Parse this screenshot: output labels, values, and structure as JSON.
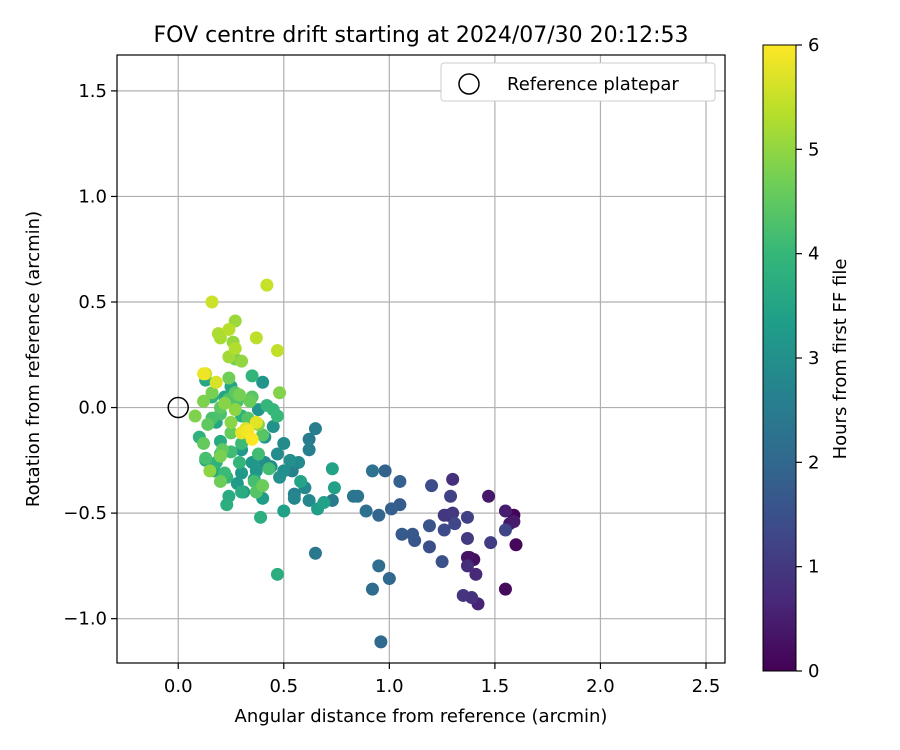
{
  "chart_data": {
    "type": "scatter",
    "title": "FOV centre drift starting at 2024/07/30 20:12:53",
    "xlabel": "Angular distance from reference (arcmin)",
    "ylabel": "Rotation from reference (arcmin)",
    "xlim": [
      -0.29,
      2.59
    ],
    "ylim": [
      -1.21,
      1.67
    ],
    "xticks": [
      0.0,
      0.5,
      1.0,
      1.5,
      2.0,
      2.5
    ],
    "xtick_labels": [
      "0.0",
      "0.5",
      "1.0",
      "1.5",
      "2.0",
      "2.5"
    ],
    "yticks": [
      -1.0,
      -0.5,
      0.0,
      0.5,
      1.0,
      1.5
    ],
    "ytick_labels": [
      "−1.0",
      "−0.5",
      "0.0",
      "0.5",
      "1.0",
      "1.5"
    ],
    "grid": true,
    "legend": {
      "position": "top-right",
      "entries": [
        "Reference platepar"
      ]
    },
    "reference_point": {
      "x": 0.0,
      "y": 0.0,
      "label": "Reference platepar"
    },
    "colorbar": {
      "label": "Hours from first FF file",
      "colormap": "viridis",
      "range": [
        0,
        6
      ],
      "ticks": [
        0,
        1,
        2,
        3,
        4,
        5,
        6
      ],
      "tick_labels": [
        "0",
        "1",
        "2",
        "3",
        "4",
        "5",
        "6"
      ],
      "colors": [
        "#440154",
        "#482878",
        "#3e4989",
        "#31688e",
        "#26828e",
        "#1f9e89",
        "#35b779",
        "#6ece58",
        "#b5de2b",
        "#fde725"
      ]
    },
    "points": [
      {
        "x": 1.59,
        "y": -0.51,
        "h": 0.05
      },
      {
        "x": 1.6,
        "y": -0.65,
        "h": 0.1
      },
      {
        "x": 1.55,
        "y": -0.86,
        "h": 0.15
      },
      {
        "x": 1.38,
        "y": -0.71,
        "h": 0.2
      },
      {
        "x": 1.4,
        "y": -0.72,
        "h": 0.25
      },
      {
        "x": 1.37,
        "y": -0.71,
        "h": 0.3
      },
      {
        "x": 1.57,
        "y": -0.55,
        "h": 0.35
      },
      {
        "x": 1.47,
        "y": -0.42,
        "h": 0.4
      },
      {
        "x": 1.59,
        "y": -0.54,
        "h": 0.45
      },
      {
        "x": 1.55,
        "y": -0.49,
        "h": 0.5
      },
      {
        "x": 1.28,
        "y": -0.51,
        "h": 0.55
      },
      {
        "x": 1.42,
        "y": -0.93,
        "h": 0.6
      },
      {
        "x": 1.41,
        "y": -0.79,
        "h": 0.7
      },
      {
        "x": 1.37,
        "y": -0.75,
        "h": 0.75
      },
      {
        "x": 1.3,
        "y": -0.34,
        "h": 0.8
      },
      {
        "x": 1.39,
        "y": -0.9,
        "h": 0.85
      },
      {
        "x": 1.35,
        "y": -0.89,
        "h": 0.9
      },
      {
        "x": 1.26,
        "y": -0.51,
        "h": 0.95
      },
      {
        "x": 1.3,
        "y": -0.5,
        "h": 1.0
      },
      {
        "x": 1.37,
        "y": -0.62,
        "h": 1.05
      },
      {
        "x": 1.48,
        "y": -0.64,
        "h": 1.1
      },
      {
        "x": 1.37,
        "y": -0.52,
        "h": 1.15
      },
      {
        "x": 1.29,
        "y": -0.42,
        "h": 1.2
      },
      {
        "x": 1.55,
        "y": -0.58,
        "h": 1.25
      },
      {
        "x": 1.31,
        "y": -0.55,
        "h": 1.3
      },
      {
        "x": 1.26,
        "y": -0.58,
        "h": 1.35
      },
      {
        "x": 1.2,
        "y": -0.37,
        "h": 1.4
      },
      {
        "x": 1.19,
        "y": -0.66,
        "h": 1.45
      },
      {
        "x": 1.25,
        "y": -0.73,
        "h": 1.5
      },
      {
        "x": 1.19,
        "y": -0.56,
        "h": 1.55
      },
      {
        "x": 1.12,
        "y": -0.63,
        "h": 1.6
      },
      {
        "x": 1.11,
        "y": -0.6,
        "h": 1.65
      },
      {
        "x": 1.06,
        "y": -0.6,
        "h": 1.7
      },
      {
        "x": 1.05,
        "y": -0.46,
        "h": 1.75
      },
      {
        "x": 1.01,
        "y": -0.48,
        "h": 1.8
      },
      {
        "x": 1.05,
        "y": -0.35,
        "h": 1.85
      },
      {
        "x": 0.98,
        "y": -0.3,
        "h": 1.9
      },
      {
        "x": 0.95,
        "y": -0.51,
        "h": 1.95
      },
      {
        "x": 1.0,
        "y": -0.81,
        "h": 2.0
      },
      {
        "x": 0.96,
        "y": -1.11,
        "h": 2.05
      },
      {
        "x": 0.92,
        "y": -0.86,
        "h": 2.1
      },
      {
        "x": 0.95,
        "y": -0.75,
        "h": 2.15
      },
      {
        "x": 0.89,
        "y": -0.49,
        "h": 2.2
      },
      {
        "x": 0.92,
        "y": -0.3,
        "h": 2.25
      },
      {
        "x": 0.85,
        "y": -0.42,
        "h": 2.3
      },
      {
        "x": 0.83,
        "y": -0.42,
        "h": 2.35
      },
      {
        "x": 0.65,
        "y": -0.69,
        "h": 2.4
      },
      {
        "x": 0.73,
        "y": -0.44,
        "h": 2.45
      },
      {
        "x": 0.62,
        "y": -0.15,
        "h": 2.5
      },
      {
        "x": 0.65,
        "y": -0.1,
        "h": 2.55
      },
      {
        "x": 0.62,
        "y": -0.2,
        "h": 2.6
      },
      {
        "x": 0.54,
        "y": -0.3,
        "h": 2.65
      },
      {
        "x": 0.55,
        "y": -0.41,
        "h": 2.7
      },
      {
        "x": 0.55,
        "y": -0.43,
        "h": 2.75
      },
      {
        "x": 0.62,
        "y": -0.44,
        "h": 2.8
      },
      {
        "x": 0.6,
        "y": -0.38,
        "h": 2.82
      },
      {
        "x": 0.57,
        "y": -0.26,
        "h": 2.85
      },
      {
        "x": 0.5,
        "y": -0.17,
        "h": 2.88
      },
      {
        "x": 0.47,
        "y": -0.22,
        "h": 2.9
      },
      {
        "x": 0.44,
        "y": -0.28,
        "h": 2.92
      },
      {
        "x": 0.41,
        "y": -0.26,
        "h": 2.95
      },
      {
        "x": 0.5,
        "y": -0.3,
        "h": 2.97
      },
      {
        "x": 0.53,
        "y": -0.25,
        "h": 3.0
      },
      {
        "x": 0.48,
        "y": -0.33,
        "h": 3.02
      },
      {
        "x": 0.45,
        "y": -0.09,
        "h": 3.05
      },
      {
        "x": 0.41,
        "y": -0.14,
        "h": 3.07
      },
      {
        "x": 0.38,
        "y": -0.01,
        "h": 3.1
      },
      {
        "x": 0.4,
        "y": 0.12,
        "h": 3.12
      },
      {
        "x": 0.37,
        "y": -0.3,
        "h": 3.15
      },
      {
        "x": 0.35,
        "y": -0.26,
        "h": 3.17
      },
      {
        "x": 0.3,
        "y": -0.2,
        "h": 3.2
      },
      {
        "x": 0.3,
        "y": -0.31,
        "h": 3.22
      },
      {
        "x": 0.28,
        "y": -0.36,
        "h": 3.25
      },
      {
        "x": 0.31,
        "y": -0.4,
        "h": 3.27
      },
      {
        "x": 0.36,
        "y": -0.34,
        "h": 3.3
      },
      {
        "x": 0.4,
        "y": -0.43,
        "h": 3.32
      },
      {
        "x": 0.5,
        "y": -0.49,
        "h": 3.35
      },
      {
        "x": 0.66,
        "y": -0.48,
        "h": 3.37
      },
      {
        "x": 0.69,
        "y": -0.45,
        "h": 3.4
      },
      {
        "x": 0.74,
        "y": -0.38,
        "h": 3.42
      },
      {
        "x": 0.73,
        "y": -0.29,
        "h": 3.45
      },
      {
        "x": 0.58,
        "y": -0.35,
        "h": 3.47
      },
      {
        "x": 0.25,
        "y": 0.1,
        "h": 3.5
      },
      {
        "x": 0.22,
        "y": 0.05,
        "h": 3.52
      },
      {
        "x": 0.18,
        "y": -0.07,
        "h": 3.55
      },
      {
        "x": 0.13,
        "y": 0.13,
        "h": 3.57
      },
      {
        "x": 0.13,
        "y": -0.25,
        "h": 3.6
      },
      {
        "x": 0.17,
        "y": -0.3,
        "h": 3.62
      },
      {
        "x": 0.2,
        "y": -0.16,
        "h": 3.65
      },
      {
        "x": 0.24,
        "y": -0.42,
        "h": 3.67
      },
      {
        "x": 0.3,
        "y": -0.4,
        "h": 3.7
      },
      {
        "x": 0.47,
        "y": -0.79,
        "h": 3.72
      },
      {
        "x": 0.39,
        "y": -0.52,
        "h": 3.75
      },
      {
        "x": 0.23,
        "y": -0.46,
        "h": 3.77
      },
      {
        "x": 0.3,
        "y": -0.04,
        "h": 3.8
      },
      {
        "x": 0.16,
        "y": 0.05,
        "h": 3.82
      },
      {
        "x": 0.1,
        "y": -0.14,
        "h": 3.85
      },
      {
        "x": 0.18,
        "y": -0.26,
        "h": 3.87
      },
      {
        "x": 0.23,
        "y": -0.33,
        "h": 3.9
      },
      {
        "x": 0.29,
        "y": -0.26,
        "h": 3.92
      },
      {
        "x": 0.35,
        "y": 0.15,
        "h": 3.95
      },
      {
        "x": 0.42,
        "y": 0.01,
        "h": 3.97
      },
      {
        "x": 0.45,
        "y": -0.01,
        "h": 4.0
      },
      {
        "x": 0.47,
        "y": -0.04,
        "h": 4.02
      },
      {
        "x": 0.2,
        "y": -0.22,
        "h": 4.05
      },
      {
        "x": 0.22,
        "y": -0.31,
        "h": 4.07
      },
      {
        "x": 0.3,
        "y": -0.17,
        "h": 4.1
      },
      {
        "x": 0.25,
        "y": -0.21,
        "h": 4.12
      },
      {
        "x": 0.38,
        "y": -0.22,
        "h": 4.15
      },
      {
        "x": 0.43,
        "y": -0.29,
        "h": 4.17
      },
      {
        "x": 0.36,
        "y": -0.35,
        "h": 4.2
      },
      {
        "x": 0.13,
        "y": -0.24,
        "h": 4.22
      },
      {
        "x": 0.16,
        "y": -0.05,
        "h": 4.25
      },
      {
        "x": 0.2,
        "y": -0.03,
        "h": 4.27
      },
      {
        "x": 0.24,
        "y": 0.04,
        "h": 4.3
      },
      {
        "x": 0.28,
        "y": 0.03,
        "h": 4.32
      },
      {
        "x": 0.33,
        "y": -0.05,
        "h": 4.35
      },
      {
        "x": 0.37,
        "y": -0.4,
        "h": 4.37
      },
      {
        "x": 0.4,
        "y": -0.13,
        "h": 4.4
      },
      {
        "x": 0.35,
        "y": 0.05,
        "h": 4.42
      },
      {
        "x": 0.27,
        "y": 0.07,
        "h": 4.45
      },
      {
        "x": 0.2,
        "y": 0.0,
        "h": 4.47
      },
      {
        "x": 0.14,
        "y": -0.08,
        "h": 4.5
      },
      {
        "x": 0.21,
        "y": -0.2,
        "h": 4.52
      },
      {
        "x": 0.12,
        "y": -0.17,
        "h": 4.55
      },
      {
        "x": 0.25,
        "y": -0.12,
        "h": 4.57
      },
      {
        "x": 0.34,
        "y": 0.03,
        "h": 4.6
      },
      {
        "x": 0.4,
        "y": -0.37,
        "h": 4.62
      },
      {
        "x": 0.2,
        "y": -0.35,
        "h": 4.65
      },
      {
        "x": 0.24,
        "y": 0.14,
        "h": 4.67
      },
      {
        "x": 0.27,
        "y": 0.23,
        "h": 4.7
      },
      {
        "x": 0.29,
        "y": 0.06,
        "h": 4.72
      },
      {
        "x": 0.16,
        "y": 0.07,
        "h": 4.75
      },
      {
        "x": 0.2,
        "y": -0.23,
        "h": 4.77
      },
      {
        "x": 0.12,
        "y": 0.03,
        "h": 4.8
      },
      {
        "x": 0.08,
        "y": -0.04,
        "h": 4.82
      },
      {
        "x": 0.48,
        "y": 0.07,
        "h": 4.85
      },
      {
        "x": 0.38,
        "y": -0.08,
        "h": 4.87
      },
      {
        "x": 0.22,
        "y": 0.02,
        "h": 4.9
      },
      {
        "x": 0.25,
        "y": -0.07,
        "h": 4.92
      },
      {
        "x": 0.27,
        "y": -0.01,
        "h": 4.95
      },
      {
        "x": 0.15,
        "y": -0.3,
        "h": 4.97
      },
      {
        "x": 0.3,
        "y": 0.22,
        "h": 5.0
      },
      {
        "x": 0.26,
        "y": 0.31,
        "h": 5.05
      },
      {
        "x": 0.27,
        "y": 0.41,
        "h": 5.1
      },
      {
        "x": 0.24,
        "y": 0.24,
        "h": 5.15
      },
      {
        "x": 0.2,
        "y": 0.33,
        "h": 5.2
      },
      {
        "x": 0.19,
        "y": 0.35,
        "h": 5.25
      },
      {
        "x": 0.27,
        "y": 0.28,
        "h": 5.3
      },
      {
        "x": 0.24,
        "y": 0.37,
        "h": 5.35
      },
      {
        "x": 0.37,
        "y": 0.33,
        "h": 5.4
      },
      {
        "x": 0.47,
        "y": 0.27,
        "h": 5.45
      },
      {
        "x": 0.42,
        "y": 0.58,
        "h": 5.5
      },
      {
        "x": 0.16,
        "y": 0.5,
        "h": 5.55
      },
      {
        "x": 0.13,
        "y": 0.16,
        "h": 5.6
      },
      {
        "x": 0.18,
        "y": 0.12,
        "h": 5.65
      },
      {
        "x": 0.32,
        "y": -0.1,
        "h": 5.7
      },
      {
        "x": 0.37,
        "y": -0.07,
        "h": 5.75
      },
      {
        "x": 0.3,
        "y": -0.12,
        "h": 5.8
      },
      {
        "x": 0.12,
        "y": 0.16,
        "h": 5.85
      },
      {
        "x": 0.33,
        "y": -0.11,
        "h": 5.9
      },
      {
        "x": 0.35,
        "y": -0.15,
        "h": 6.0
      }
    ]
  }
}
